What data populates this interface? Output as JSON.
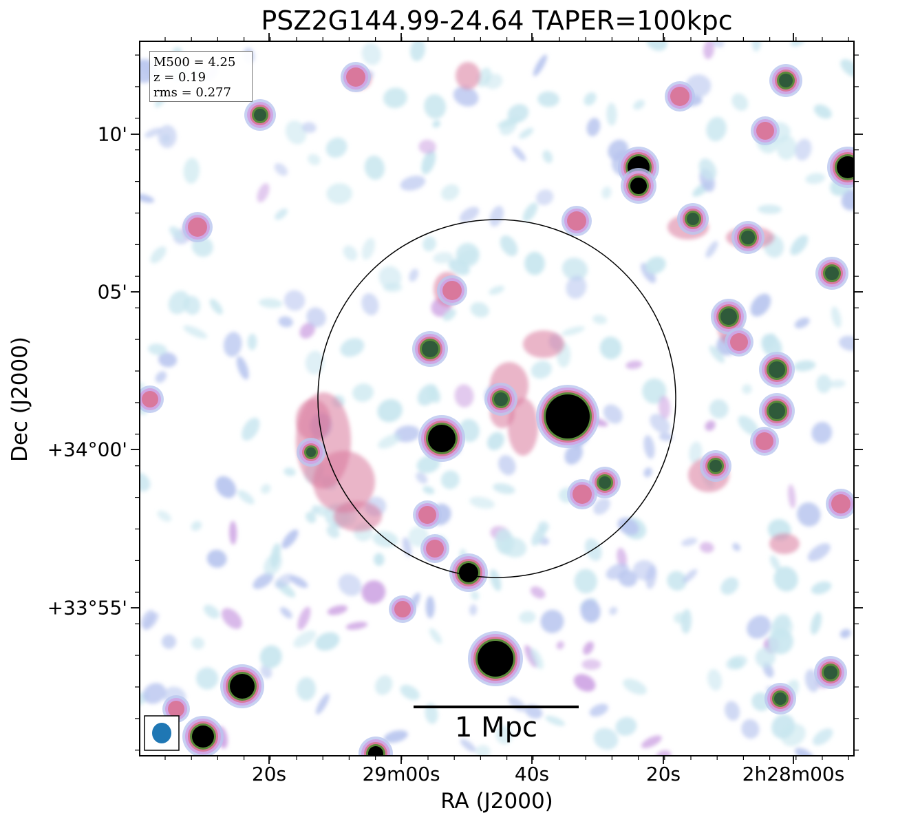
{
  "figure": {
    "title": "PSZ2G144.99-24.64 TAPER=100kpc",
    "xlabel": "RA (J2000)",
    "ylabel": "Dec (J2000)",
    "x_ticks": [
      "20s",
      "29m00s",
      "40s",
      "20s",
      "2h28m00s"
    ],
    "y_ticks": [
      "10'",
      "05'",
      "+34°00'",
      "+33°55'"
    ],
    "info_box": {
      "m500": "M500 = 4.25",
      "z": "z = 0.19",
      "rms": "rms = 0.277"
    },
    "scale_bar_label": "1 Mpc",
    "beam_color": "#1f77b4",
    "colormap": [
      "#ffffff",
      "#c8e6ef",
      "#b9c6ef",
      "#cfa6e4",
      "#d9789c",
      "#5a8a3a",
      "#000000"
    ]
  }
}
